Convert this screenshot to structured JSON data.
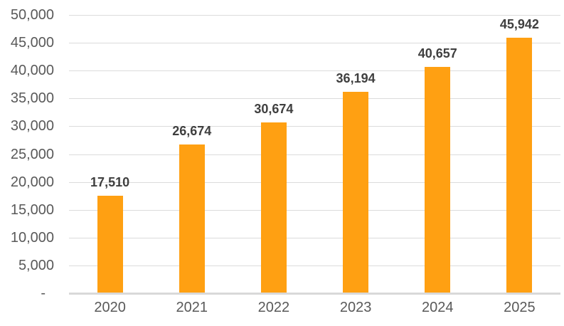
{
  "chart_data": {
    "type": "bar",
    "title": "",
    "xlabel": "",
    "ylabel": "",
    "categories": [
      "2020",
      "2021",
      "2022",
      "2023",
      "2024",
      "2025"
    ],
    "values": [
      17510,
      26674,
      30674,
      36194,
      40657,
      45942
    ],
    "value_labels": [
      "17,510",
      "26,674",
      "30,674",
      "36,194",
      "40,657",
      "45,942"
    ],
    "ylim": [
      0,
      50000
    ],
    "ytick_step": 5000,
    "ytick_labels": [
      "-",
      "5,000",
      "10,000",
      "15,000",
      "20,000",
      "25,000",
      "30,000",
      "35,000",
      "40,000",
      "45,000",
      "50,000"
    ],
    "grid": true,
    "legend": false,
    "colors": {
      "bar": "#FFA012",
      "value_label": "#3F3F3F",
      "axis_text": "#595959",
      "gridline": "#DBDBDB",
      "axis_line": "#D9D9D9",
      "background": "#FFFFFF"
    }
  }
}
